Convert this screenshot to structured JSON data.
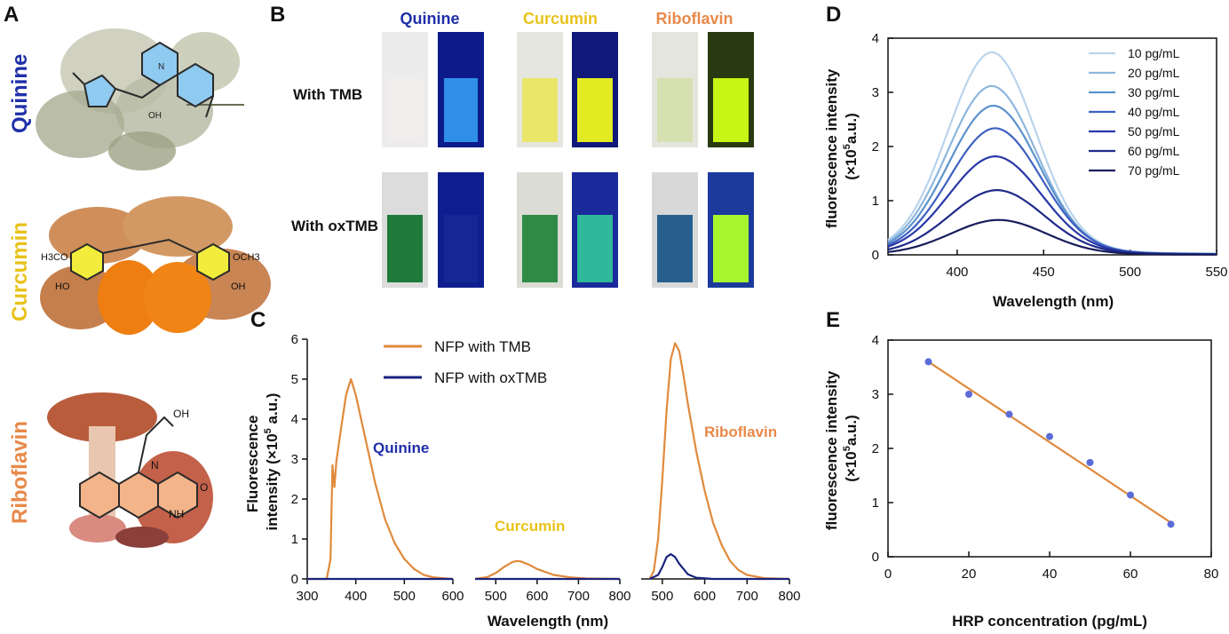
{
  "panels": {
    "A": {
      "label": "A",
      "compounds": [
        {
          "name": "Quinine",
          "color": "#1f2fa8"
        },
        {
          "name": "Curcumin",
          "color": "#e8c21a"
        },
        {
          "name": "Riboflavin",
          "color": "#e8894a"
        }
      ],
      "structure_text": {
        "curcumin_left": "H3CO",
        "curcumin_right": "OCH3",
        "oh": "OH",
        "n": "N",
        "nh": "NH",
        "o": "O",
        "ho": "HO"
      }
    },
    "B": {
      "label": "B",
      "headers": [
        {
          "name": "Quinine",
          "color": "#1f2fa8"
        },
        {
          "name": "Curcumin",
          "color": "#e8c21a"
        },
        {
          "name": "Riboflavin",
          "color": "#e8894a"
        }
      ],
      "rows": [
        "With TMB",
        "With oxTMB"
      ]
    },
    "C": {
      "label": "C",
      "ylabel": "Fluorescence intensity (×10^5 a.u.)"
    },
    "D": {
      "label": "D"
    },
    "E": {
      "label": "E"
    }
  },
  "chart_data": [
    {
      "id": "C",
      "type": "line",
      "ylabel": "Fluorescence intensity (×10^5 a.u.)",
      "xlabel": "Wavelength (nm)",
      "ylim": [
        0,
        6
      ],
      "yticks": [
        "0",
        "1",
        "2",
        "3",
        "4",
        "5",
        "6"
      ],
      "legend": [
        {
          "name": "NFP with TMB",
          "color": "#e08a3c"
        },
        {
          "name": "NFP with oxTMB",
          "color": "#1a237e"
        }
      ],
      "subplots": [
        {
          "name": "Quinine",
          "xlim": [
            300,
            600
          ],
          "xticks": [
            "300",
            "400",
            "500",
            "600"
          ],
          "series": [
            {
              "name": "NFP with TMB",
              "x": [
                300,
                340,
                348,
                352,
                356,
                360,
                370,
                380,
                390,
                400,
                420,
                440,
                460,
                480,
                500,
                520,
                540,
                560,
                600
              ],
              "values": [
                0,
                0,
                0.5,
                2.85,
                2.3,
                2.95,
                3.8,
                4.6,
                5.0,
                4.6,
                3.5,
                2.4,
                1.5,
                0.9,
                0.5,
                0.25,
                0.1,
                0.04,
                0
              ]
            },
            {
              "name": "NFP with oxTMB",
              "x": [
                300,
                600
              ],
              "values": [
                0,
                0
              ]
            }
          ]
        },
        {
          "name": "Curcumin",
          "xlim": [
            450,
            800
          ],
          "xticks": [
            "500",
            "600",
            "700",
            "800"
          ],
          "series": [
            {
              "name": "NFP with TMB",
              "x": [
                450,
                480,
                500,
                520,
                540,
                550,
                560,
                580,
                600,
                640,
                680,
                720,
                800
              ],
              "values": [
                0,
                0.05,
                0.15,
                0.3,
                0.42,
                0.45,
                0.44,
                0.36,
                0.25,
                0.1,
                0.04,
                0.01,
                0
              ]
            },
            {
              "name": "NFP with oxTMB",
              "x": [
                450,
                800
              ],
              "values": [
                0,
                0
              ]
            }
          ]
        },
        {
          "name": "Riboflavin",
          "xlim": [
            450,
            800
          ],
          "xticks": [
            "500",
            "600",
            "700",
            "800"
          ],
          "series": [
            {
              "name": "NFP with TMB",
              "x": [
                470,
                480,
                490,
                500,
                510,
                520,
                530,
                540,
                550,
                560,
                580,
                600,
                620,
                640,
                660,
                680,
                700,
                740,
                800
              ],
              "values": [
                0,
                0.2,
                1.0,
                2.5,
                4.2,
                5.5,
                5.9,
                5.7,
                5.1,
                4.4,
                3.2,
                2.2,
                1.4,
                0.85,
                0.45,
                0.22,
                0.1,
                0.02,
                0
              ]
            },
            {
              "name": "NFP with oxTMB",
              "x": [
                470,
                490,
                500,
                510,
                520,
                530,
                540,
                560,
                580,
                620,
                800
              ],
              "values": [
                0,
                0.1,
                0.3,
                0.55,
                0.62,
                0.55,
                0.38,
                0.12,
                0.03,
                0,
                0
              ]
            }
          ]
        }
      ]
    },
    {
      "id": "D",
      "type": "line",
      "xlabel": "Wavelength (nm)",
      "ylabel": "fluorescence intensity (×10^5 a.u.)",
      "xlim": [
        360,
        550
      ],
      "ylim": [
        0,
        4
      ],
      "xticks": [
        "400",
        "450",
        "500",
        "550"
      ],
      "yticks": [
        "0",
        "1",
        "2",
        "3",
        "4"
      ],
      "legend_position": "top-right",
      "series": [
        {
          "name": "10 pg/mL",
          "color": "#b9d4ec",
          "peak": 3.6,
          "center": 420
        },
        {
          "name": "20 pg/mL",
          "color": "#8eb6dd",
          "peak": 3.0,
          "center": 420
        },
        {
          "name": "30 pg/mL",
          "color": "#5c92cc",
          "peak": 2.65,
          "center": 421
        },
        {
          "name": "40 pg/mL",
          "color": "#3f60c2",
          "peak": 2.25,
          "center": 422
        },
        {
          "name": "50 pg/mL",
          "color": "#2838a8",
          "peak": 1.75,
          "center": 422
        },
        {
          "name": "60 pg/mL",
          "color": "#1f2a8a",
          "peak": 1.15,
          "center": 423
        },
        {
          "name": "70 pg/mL",
          "color": "#161d5c",
          "peak": 0.62,
          "center": 424
        }
      ]
    },
    {
      "id": "E",
      "type": "scatter",
      "xlabel": "HRP concentration (pg/mL)",
      "ylabel": "fluorescence intensity (×10^5 a.u.)",
      "xlim": [
        0,
        80
      ],
      "ylim": [
        0,
        4
      ],
      "xticks": [
        "0",
        "20",
        "40",
        "60",
        "80"
      ],
      "yticks": [
        "0",
        "1",
        "2",
        "3",
        "4"
      ],
      "x": [
        10,
        20,
        30,
        40,
        50,
        60,
        70
      ],
      "values": [
        3.6,
        3.0,
        2.63,
        2.22,
        1.74,
        1.14,
        0.6
      ],
      "fit": {
        "x": [
          10,
          70
        ],
        "values": [
          3.6,
          0.63
        ],
        "color": "#e08a3c"
      },
      "point_color": "#5b6bd8"
    }
  ]
}
